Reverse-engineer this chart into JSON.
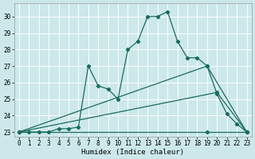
{
  "xlabel": "Humidex (Indice chaleur)",
  "background_color": "#cce8ea",
  "grid_color": "#ffffff",
  "line_color": "#1a6b5e",
  "xlim": [
    -0.5,
    23.5
  ],
  "ylim": [
    22.7,
    30.8
  ],
  "xticks": [
    0,
    1,
    2,
    3,
    4,
    5,
    6,
    7,
    8,
    9,
    10,
    11,
    12,
    13,
    14,
    15,
    16,
    17,
    18,
    19,
    20,
    21,
    22,
    23
  ],
  "yticks": [
    23,
    24,
    25,
    26,
    27,
    28,
    29,
    30
  ],
  "series": [
    {
      "x": [
        0,
        1,
        2,
        3,
        4,
        5,
        6,
        7,
        8,
        9,
        10,
        11,
        12,
        13,
        14,
        15,
        16,
        17,
        18,
        19,
        20,
        21,
        22,
        23
      ],
      "y": [
        23,
        23,
        23,
        23,
        23.2,
        23.2,
        23.3,
        27,
        25.8,
        25.6,
        25,
        28,
        28.5,
        30,
        30,
        30.3,
        28.5,
        27.5,
        27.5,
        27,
        25.3,
        24.1,
        23.5,
        23
      ]
    },
    {
      "x": [
        0,
        19,
        23
      ],
      "y": [
        23,
        27,
        23
      ]
    },
    {
      "x": [
        0,
        20,
        23
      ],
      "y": [
        23,
        25.4,
        23
      ]
    },
    {
      "x": [
        0,
        19,
        23
      ],
      "y": [
        23,
        23,
        23
      ]
    }
  ],
  "marker": "D",
  "markersize": 2.2,
  "linewidth": 0.9,
  "tick_fontsize": 5.5,
  "xlabel_fontsize": 6.5
}
